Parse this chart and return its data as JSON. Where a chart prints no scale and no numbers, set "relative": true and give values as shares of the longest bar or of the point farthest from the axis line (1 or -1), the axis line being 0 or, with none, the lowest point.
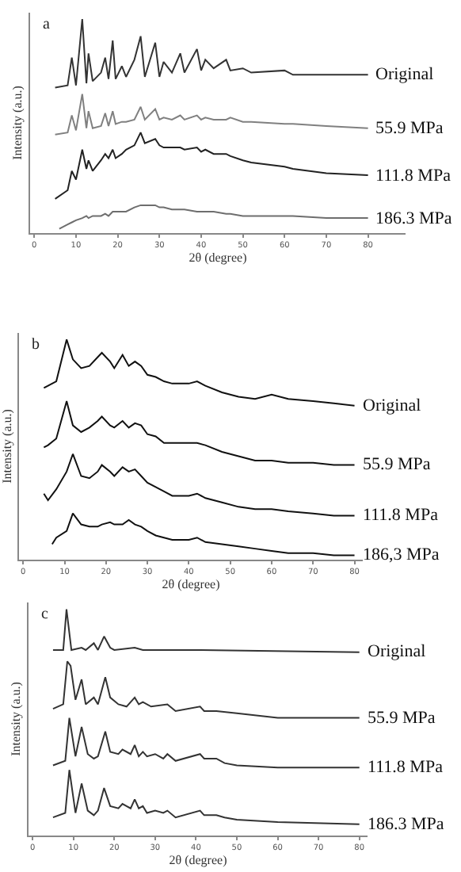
{
  "chart_data": [
    {
      "type": "line",
      "relative": true,
      "annotations": [
        "a"
      ],
      "xlabel": "2θ (degree)",
      "ylabel": "Intensity (a.u.)",
      "xlim": [
        -1,
        89
      ],
      "xticks": [
        0,
        10,
        20,
        30,
        40,
        50,
        60,
        70,
        80
      ],
      "series": [
        {
          "name": "Original",
          "color": "#333333",
          "x": [
            5,
            8,
            9,
            10,
            11.5,
            12.5,
            13,
            14,
            16,
            17,
            17.8,
            18.8,
            19.5,
            21,
            22,
            24,
            25.5,
            26.5,
            29,
            30,
            31,
            33,
            35,
            36,
            39,
            40,
            41,
            43,
            46,
            47,
            50,
            52,
            60,
            62,
            70,
            80
          ],
          "values": [
            0.68,
            0.69,
            0.82,
            0.69,
            1.0,
            0.7,
            0.84,
            0.71,
            0.75,
            0.82,
            0.72,
            0.9,
            0.72,
            0.78,
            0.73,
            0.81,
            0.92,
            0.73,
            0.89,
            0.73,
            0.8,
            0.75,
            0.84,
            0.75,
            0.86,
            0.76,
            0.81,
            0.77,
            0.81,
            0.76,
            0.77,
            0.75,
            0.76,
            0.74,
            0.74,
            0.74
          ]
        },
        {
          "name": "55.9 MPa",
          "color": "#808080",
          "x": [
            5,
            8,
            9,
            10,
            11.5,
            12.5,
            13,
            14,
            16,
            17,
            17.8,
            18.8,
            19.5,
            21,
            22,
            24,
            25.5,
            26.5,
            29,
            30,
            31,
            33,
            35,
            36,
            39,
            40,
            41,
            43,
            46,
            47,
            50,
            52,
            60,
            62,
            70,
            80
          ],
          "values": [
            0.46,
            0.47,
            0.55,
            0.48,
            0.65,
            0.49,
            0.57,
            0.49,
            0.5,
            0.56,
            0.5,
            0.57,
            0.51,
            0.52,
            0.52,
            0.53,
            0.59,
            0.53,
            0.58,
            0.53,
            0.54,
            0.53,
            0.55,
            0.53,
            0.55,
            0.53,
            0.54,
            0.53,
            0.53,
            0.54,
            0.52,
            0.52,
            0.51,
            0.51,
            0.5,
            0.49
          ]
        },
        {
          "name": "111.8 MPa",
          "color": "#222222",
          "x": [
            5,
            8,
            9,
            10,
            11.5,
            12.5,
            13,
            14,
            16,
            17,
            17.8,
            18.8,
            19.5,
            21,
            22,
            24,
            25.5,
            26.5,
            29,
            30,
            31,
            33,
            35,
            36,
            39,
            40,
            41,
            43,
            46,
            47,
            50,
            52,
            60,
            62,
            70,
            80
          ],
          "values": [
            0.16,
            0.2,
            0.29,
            0.25,
            0.39,
            0.3,
            0.34,
            0.29,
            0.34,
            0.37,
            0.35,
            0.39,
            0.35,
            0.37,
            0.39,
            0.41,
            0.47,
            0.42,
            0.44,
            0.41,
            0.4,
            0.4,
            0.4,
            0.39,
            0.4,
            0.38,
            0.39,
            0.37,
            0.37,
            0.36,
            0.34,
            0.33,
            0.31,
            0.3,
            0.28,
            0.27
          ]
        },
        {
          "name": "186.3 MPa",
          "color": "#6e6e6e",
          "x": [
            6,
            8,
            9,
            10,
            11.5,
            12.5,
            13,
            14,
            16,
            17,
            17.8,
            18.8,
            19.5,
            21,
            22,
            24,
            25.5,
            26.5,
            29,
            30,
            31,
            33,
            35,
            36,
            39,
            40,
            41,
            43,
            46,
            47,
            50,
            52,
            60,
            62,
            70,
            80
          ],
          "values": [
            0.02,
            0.04,
            0.05,
            0.06,
            0.07,
            0.08,
            0.07,
            0.08,
            0.08,
            0.09,
            0.08,
            0.1,
            0.1,
            0.1,
            0.1,
            0.12,
            0.13,
            0.13,
            0.13,
            0.12,
            0.12,
            0.11,
            0.11,
            0.11,
            0.1,
            0.1,
            0.1,
            0.1,
            0.09,
            0.09,
            0.08,
            0.08,
            0.08,
            0.08,
            0.07,
            0.07
          ]
        }
      ]
    },
    {
      "type": "line",
      "relative": true,
      "annotations": [
        "b"
      ],
      "xlabel": "2θ (degree)",
      "ylabel": "Intensity (a.u.)",
      "xlim": [
        -1,
        82
      ],
      "xticks": [
        0,
        10,
        20,
        30,
        40,
        50,
        60,
        70,
        80
      ],
      "series": [
        {
          "name": "Original",
          "color": "#111111",
          "x": [
            5,
            6,
            8,
            10.5,
            12,
            14,
            16,
            18,
            19,
            21,
            22,
            24,
            25.5,
            27,
            28.5,
            30,
            32,
            34,
            36,
            40,
            42,
            44,
            48,
            52,
            56,
            60,
            64,
            70,
            75,
            80
          ],
          "values": [
            0.78,
            0.79,
            0.81,
            1.0,
            0.91,
            0.87,
            0.88,
            0.92,
            0.94,
            0.9,
            0.87,
            0.93,
            0.88,
            0.9,
            0.88,
            0.84,
            0.83,
            0.81,
            0.8,
            0.8,
            0.81,
            0.79,
            0.76,
            0.74,
            0.73,
            0.75,
            0.73,
            0.72,
            0.71,
            0.7
          ]
        },
        {
          "name": "55.9 MPa",
          "color": "#111111",
          "x": [
            5,
            6,
            8,
            10.5,
            12,
            14,
            16,
            18,
            19,
            21,
            22,
            24,
            25.5,
            27,
            28.5,
            30,
            32,
            34,
            36,
            40,
            42,
            44,
            48,
            52,
            56,
            60,
            64,
            70,
            75,
            80
          ],
          "values": [
            0.51,
            0.52,
            0.55,
            0.72,
            0.61,
            0.58,
            0.6,
            0.63,
            0.65,
            0.61,
            0.6,
            0.63,
            0.6,
            0.62,
            0.61,
            0.57,
            0.56,
            0.53,
            0.53,
            0.53,
            0.53,
            0.52,
            0.49,
            0.47,
            0.45,
            0.45,
            0.44,
            0.44,
            0.43,
            0.43
          ]
        },
        {
          "name": "111.8 MPa",
          "color": "#111111",
          "x": [
            5,
            6,
            8,
            10.5,
            12,
            14,
            16,
            18,
            19,
            21,
            22,
            24,
            25.5,
            27,
            28.5,
            30,
            32,
            34,
            36,
            40,
            42,
            44,
            48,
            52,
            56,
            60,
            64,
            70,
            75,
            80
          ],
          "values": [
            0.3,
            0.27,
            0.32,
            0.4,
            0.48,
            0.38,
            0.37,
            0.4,
            0.43,
            0.4,
            0.38,
            0.42,
            0.4,
            0.41,
            0.38,
            0.35,
            0.33,
            0.31,
            0.29,
            0.29,
            0.3,
            0.28,
            0.26,
            0.24,
            0.23,
            0.23,
            0.22,
            0.21,
            0.2,
            0.2
          ]
        },
        {
          "name": "186,3 MPa",
          "color": "#111111",
          "x": [
            7,
            8,
            10.5,
            12,
            14,
            16,
            18,
            19,
            21,
            22,
            24,
            25.5,
            27,
            28.5,
            30,
            32,
            34,
            36,
            40,
            42,
            44,
            48,
            52,
            56,
            60,
            64,
            70,
            75,
            80
          ],
          "values": [
            0.07,
            0.1,
            0.13,
            0.21,
            0.16,
            0.15,
            0.15,
            0.16,
            0.17,
            0.16,
            0.16,
            0.18,
            0.16,
            0.15,
            0.13,
            0.11,
            0.1,
            0.09,
            0.09,
            0.1,
            0.08,
            0.07,
            0.06,
            0.05,
            0.04,
            0.03,
            0.03,
            0.02,
            0.02
          ]
        }
      ]
    },
    {
      "type": "line",
      "relative": true,
      "annotations": [
        "c"
      ],
      "xlabel": "2θ (degree)",
      "ylabel": "Intensity (a.u.)",
      "xlim": [
        -1,
        82
      ],
      "xticks": [
        0,
        10,
        20,
        30,
        40,
        50,
        60,
        70,
        80
      ],
      "series": [
        {
          "name": "Original",
          "color": "#333333",
          "x": [
            5,
            7.5,
            8.3,
            9.5,
            12,
            13,
            15,
            16,
            17.5,
            19,
            20,
            25,
            27,
            32,
            33,
            41,
            80
          ],
          "values": [
            0.82,
            0.82,
            1.0,
            0.82,
            0.83,
            0.82,
            0.85,
            0.82,
            0.88,
            0.83,
            0.82,
            0.83,
            0.82,
            0.82,
            0.82,
            0.82,
            0.81
          ]
        },
        {
          "name": "55.9 MPa",
          "color": "#333333",
          "x": [
            5,
            7.5,
            8.5,
            9.3,
            10.5,
            12,
            13,
            15,
            16,
            17.8,
            19,
            21,
            23,
            25,
            26,
            27,
            29,
            33,
            35,
            41,
            42,
            45,
            50,
            60,
            80
          ],
          "values": [
            0.56,
            0.58,
            0.77,
            0.75,
            0.6,
            0.69,
            0.58,
            0.61,
            0.58,
            0.7,
            0.61,
            0.58,
            0.57,
            0.61,
            0.58,
            0.59,
            0.57,
            0.58,
            0.55,
            0.57,
            0.55,
            0.55,
            0.54,
            0.52,
            0.52
          ]
        },
        {
          "name": "111.8 MPa",
          "color": "#333333",
          "x": [
            5,
            8,
            9,
            10.5,
            12,
            13.5,
            15,
            16,
            17.8,
            19,
            21,
            22,
            24,
            25,
            26,
            27,
            28,
            30,
            32,
            33,
            35,
            41,
            42,
            45,
            47,
            50,
            60,
            80
          ],
          "values": [
            0.31,
            0.33,
            0.52,
            0.35,
            0.48,
            0.36,
            0.34,
            0.35,
            0.46,
            0.37,
            0.36,
            0.38,
            0.36,
            0.4,
            0.35,
            0.37,
            0.35,
            0.36,
            0.34,
            0.36,
            0.33,
            0.36,
            0.34,
            0.34,
            0.32,
            0.31,
            0.3,
            0.3
          ]
        },
        {
          "name": "186.3 MPa",
          "color": "#333333",
          "x": [
            5,
            8,
            9,
            10.5,
            12,
            13.5,
            15,
            16,
            17.5,
            19,
            21,
            22,
            24,
            25,
            26,
            27,
            28,
            30,
            32,
            33,
            35,
            41,
            42,
            45,
            47,
            50,
            60,
            80
          ],
          "values": [
            0.08,
            0.1,
            0.29,
            0.1,
            0.23,
            0.11,
            0.09,
            0.11,
            0.21,
            0.13,
            0.12,
            0.14,
            0.12,
            0.16,
            0.12,
            0.13,
            0.1,
            0.11,
            0.1,
            0.11,
            0.08,
            0.11,
            0.09,
            0.09,
            0.08,
            0.07,
            0.06,
            0.05
          ]
        }
      ]
    }
  ]
}
